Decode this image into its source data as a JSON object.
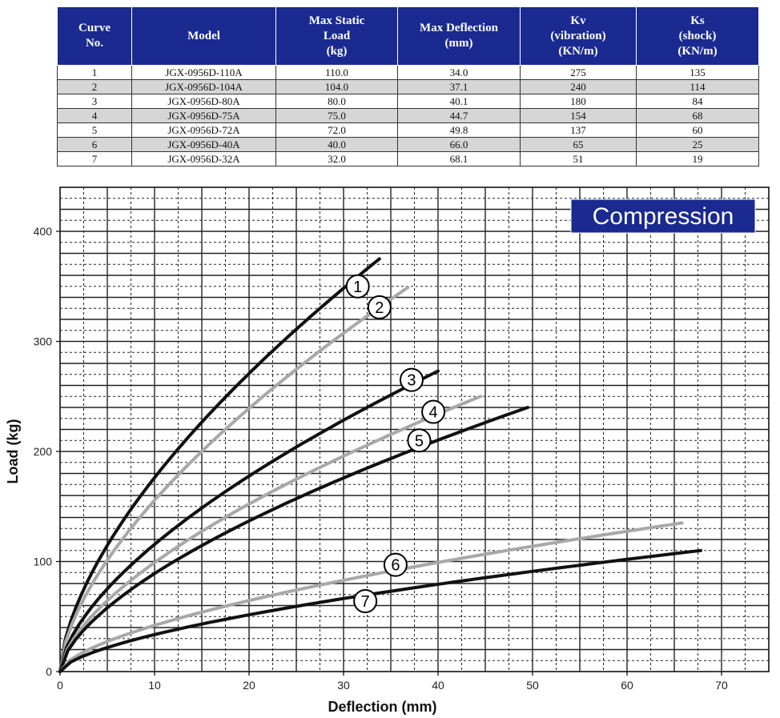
{
  "table": {
    "headers": [
      "Curve\nNo.",
      "Model",
      "Max Static\nLoad\n(kg)",
      "Max Deflection\n(mm)",
      "Kv\n(vibration)\n(KN/m)",
      "Ks\n(shock)\n(KN/m)"
    ],
    "rows": [
      [
        "1",
        "JGX-0956D-110A",
        "110.0",
        "34.0",
        "275",
        "135"
      ],
      [
        "2",
        "JGX-0956D-104A",
        "104.0",
        "37.1",
        "240",
        "114"
      ],
      [
        "3",
        "JGX-0956D-80A",
        "80.0",
        "40.1",
        "180",
        "84"
      ],
      [
        "4",
        "JGX-0956D-75A",
        "75.0",
        "44.7",
        "154",
        "68"
      ],
      [
        "5",
        "JGX-0956D-72A",
        "72.0",
        "49.8",
        "137",
        "60"
      ],
      [
        "6",
        "JGX-0956D-40A",
        "40.0",
        "66.0",
        "65",
        "25"
      ],
      [
        "7",
        "JGX-0956D-32A",
        "32.0",
        "68.1",
        "51",
        "19"
      ]
    ]
  },
  "chart_data": {
    "type": "line",
    "badge": "Compression",
    "xlabel": "Deflection (mm)",
    "ylabel": "Load (kg)",
    "xlim": [
      0,
      75
    ],
    "ylim": [
      0,
      440
    ],
    "xticks": [
      0,
      10,
      20,
      30,
      40,
      50,
      60,
      70
    ],
    "yticks": [
      0,
      100,
      200,
      300,
      400
    ],
    "colors": {
      "dark": "#111111",
      "light": "#a8a8a8",
      "badge_bg": "#1a2a90",
      "badge_fg": "#ffffff"
    },
    "series": [
      {
        "label": "1",
        "tone": "dark",
        "max_x": 33.8,
        "max_y": 375,
        "label_at": [
          31.5,
          350
        ]
      },
      {
        "label": "2",
        "tone": "light",
        "max_x": 36.8,
        "max_y": 349,
        "label_at": [
          33.8,
          331
        ]
      },
      {
        "label": "3",
        "tone": "dark",
        "max_x": 40.0,
        "max_y": 273,
        "label_at": [
          37.2,
          265
        ]
      },
      {
        "label": "4",
        "tone": "light",
        "max_x": 44.5,
        "max_y": 250,
        "label_at": [
          39.5,
          236
        ]
      },
      {
        "label": "5",
        "tone": "dark",
        "max_x": 49.5,
        "max_y": 240,
        "label_at": [
          38.0,
          210
        ]
      },
      {
        "label": "6",
        "tone": "light",
        "max_x": 65.8,
        "max_y": 135,
        "label_at": [
          35.5,
          97
        ]
      },
      {
        "label": "7",
        "tone": "dark",
        "max_x": 67.8,
        "max_y": 110,
        "label_at": [
          32.3,
          64
        ]
      }
    ]
  }
}
